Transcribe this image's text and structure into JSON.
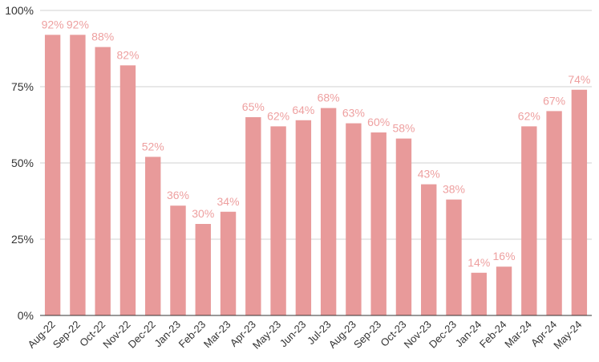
{
  "chart_data": {
    "type": "bar",
    "categories": [
      "Aug-22",
      "Sep-22",
      "Oct-22",
      "Nov-22",
      "Dec-22",
      "Jan-23",
      "Feb-23",
      "Mar-23",
      "Apr-23",
      "May-23",
      "Jun-23",
      "Jul-23",
      "Aug-23",
      "Sep-23",
      "Oct-23",
      "Nov-23",
      "Dec-23",
      "Jan-24",
      "Feb-24",
      "Mar-24",
      "Apr-24",
      "May-24"
    ],
    "values": [
      92,
      92,
      88,
      82,
      52,
      36,
      30,
      34,
      65,
      62,
      64,
      68,
      63,
      60,
      58,
      43,
      38,
      14,
      16,
      62,
      67,
      74
    ],
    "data_labels": [
      "92%",
      "92%",
      "88%",
      "82%",
      "52%",
      "36%",
      "30%",
      "34%",
      "65%",
      "62%",
      "64%",
      "68%",
      "63%",
      "60%",
      "58%",
      "43%",
      "38%",
      "14%",
      "16%",
      "62%",
      "67%",
      "74%"
    ],
    "yticks": [
      0,
      25,
      50,
      75,
      100
    ],
    "ytick_labels": [
      "0%",
      "25%",
      "50%",
      "75%",
      "100%"
    ],
    "ylim": [
      0,
      100
    ],
    "grid": true,
    "legend": "none",
    "title": "",
    "xlabel": "",
    "ylabel": "",
    "colors": {
      "bar": "#e89a9a",
      "label": "#eea0a0"
    }
  }
}
